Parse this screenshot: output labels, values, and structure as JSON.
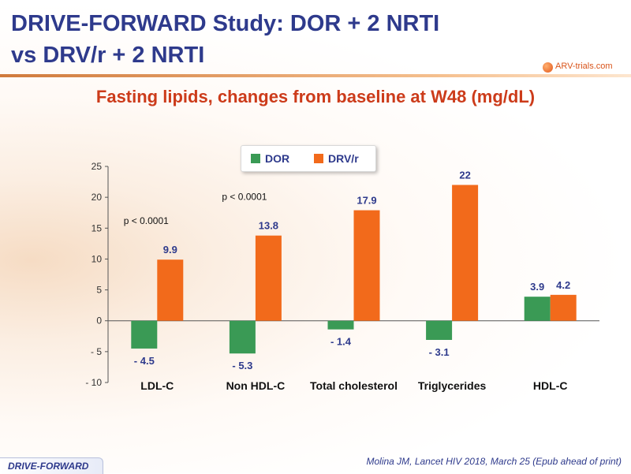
{
  "slide": {
    "title_line1": "DRIVE-FORWARD Study: DOR + 2 NRTI",
    "title_line2": "vs DRV/r + 2 NRTI",
    "subtitle": "Fasting lipids, changes  from baseline at W48 (mg/dL)",
    "logo_text": "ARV-trials.com",
    "footer_badge": "DRIVE-FORWARD",
    "citation": "Molina JM, Lancet HIV 2018, March 25 (Epub ahead of print)"
  },
  "colors": {
    "dor": "#3a9a55",
    "drv": "#f26a1b",
    "title": "#2e3a8c",
    "subtitle": "#cc3b1a"
  },
  "chart_data": {
    "type": "bar",
    "categories": [
      "LDL-C",
      "Non HDL-C",
      "Total cholesterol",
      "Triglycerides",
      "HDL-C"
    ],
    "series": [
      {
        "name": "DOR",
        "values": [
          -4.5,
          -5.3,
          -1.4,
          -3.1,
          3.9
        ],
        "labels": [
          "- 4.5",
          "- 5.3",
          "- 1.4",
          "- 3.1",
          "3.9"
        ]
      },
      {
        "name": "DRV/r",
        "values": [
          9.9,
          13.8,
          17.9,
          22,
          4.2
        ],
        "labels": [
          "9.9",
          "13.8",
          "17.9",
          "22",
          "4.2"
        ]
      }
    ],
    "ylim": [
      -10,
      25
    ],
    "yticks": [
      25,
      20,
      15,
      10,
      5,
      0,
      -5,
      -10
    ],
    "ytick_labels": [
      "25",
      "20",
      "15",
      "10",
      "5",
      "0",
      "- 5",
      "- 10"
    ],
    "annotations": [
      {
        "text": "p < 0.0001",
        "category": "LDL-C"
      },
      {
        "text": "p < 0.0001",
        "category": "Non HDL-C"
      }
    ],
    "legend_position": "top-center",
    "grid": false
  }
}
